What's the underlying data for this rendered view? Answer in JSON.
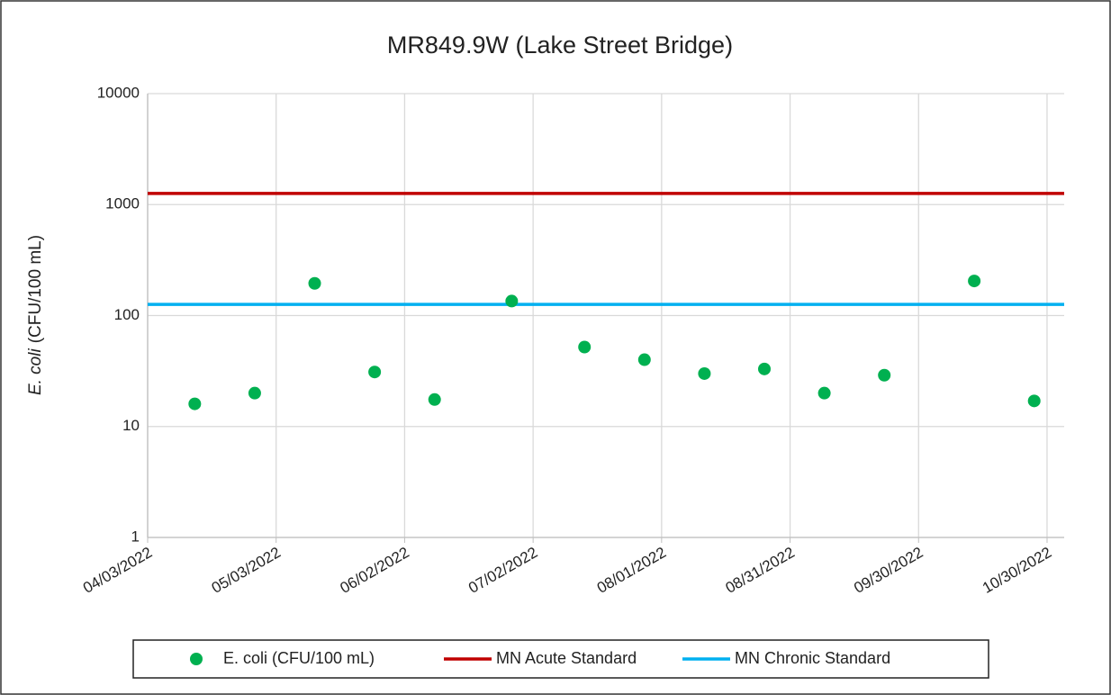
{
  "chart_data": {
    "type": "scatter",
    "title": "MR849.9W (Lake Street Bridge)",
    "ylabel": {
      "italic": "E. coli",
      "rest": "(CFU/100 mL)"
    },
    "log_y": true,
    "grid": true,
    "xlim": [
      "2022-04-03",
      "2022-11-03"
    ],
    "xticks": [
      {
        "value": "2022-04-03",
        "label": "04/03/2022"
      },
      {
        "value": "2022-05-03",
        "label": "05/03/2022"
      },
      {
        "value": "2022-06-02",
        "label": "06/02/2022"
      },
      {
        "value": "2022-07-02",
        "label": "07/02/2022"
      },
      {
        "value": "2022-08-01",
        "label": "08/01/2022"
      },
      {
        "value": "2022-08-31",
        "label": "08/31/2022"
      },
      {
        "value": "2022-09-30",
        "label": "09/30/2022"
      },
      {
        "value": "2022-10-30",
        "label": "10/30/2022"
      }
    ],
    "ylim": [
      1,
      10000
    ],
    "yticks": [
      1,
      10,
      100,
      1000,
      10000
    ],
    "legend": "bottom",
    "series": [
      {
        "name": "E. coli (CFU/100 mL)",
        "color": "#00b050",
        "style": "marker",
        "x": [
          "2022-04-14",
          "2022-04-28",
          "2022-05-12",
          "2022-05-26",
          "2022-06-09",
          "2022-06-27",
          "2022-07-14",
          "2022-07-28",
          "2022-08-11",
          "2022-08-25",
          "2022-09-08",
          "2022-09-22",
          "2022-10-13",
          "2022-10-27"
        ],
        "values": [
          16,
          20,
          195,
          31,
          17.5,
          135,
          52,
          40,
          30,
          33,
          20,
          29,
          205,
          17
        ]
      },
      {
        "name": "MN Acute Standard",
        "color": "#c00000",
        "style": "line",
        "x": [
          "2022-04-03",
          "2022-11-03"
        ],
        "values": [
          1260,
          1260
        ]
      },
      {
        "name": "MN Chronic Standard",
        "color": "#00b0f0",
        "style": "line",
        "x": [
          "2022-04-03",
          "2022-11-03"
        ],
        "values": [
          126,
          126
        ]
      }
    ]
  }
}
